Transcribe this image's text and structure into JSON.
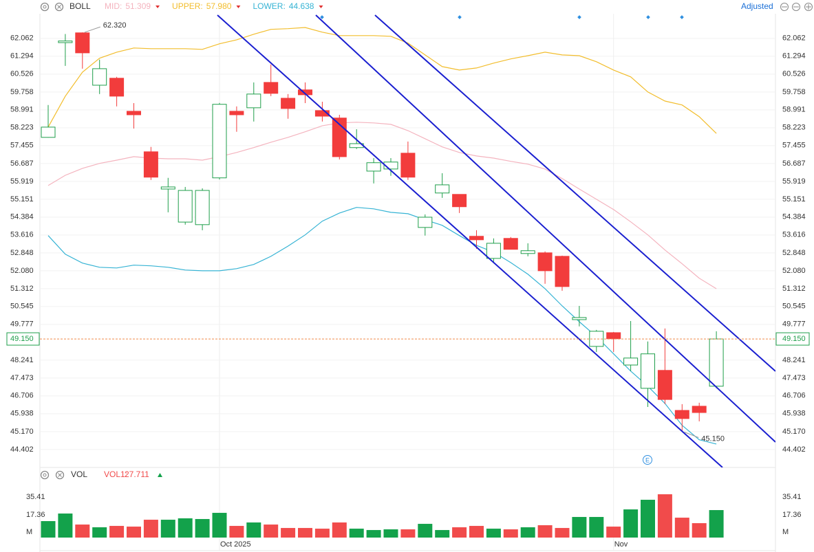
{
  "chart_data": [
    {
      "type": "candlestick",
      "title": "BOLL",
      "adjust_label": "Adjusted",
      "event_label": "E",
      "categories": [
        null,
        null,
        null,
        null,
        null,
        null,
        null,
        null,
        null,
        null,
        "Oct 2025",
        null,
        null,
        null,
        null,
        null,
        null,
        null,
        null,
        null,
        null,
        null,
        null,
        null,
        null,
        null,
        null,
        null,
        null,
        null,
        null,
        null,
        null,
        "Nov",
        null,
        null,
        null,
        null,
        null,
        null
      ],
      "open": [
        57.81,
        61.88,
        62.3,
        60.05,
        60.35,
        58.93,
        57.19,
        55.59,
        54.17,
        54.06,
        56.07,
        58.93,
        59.08,
        60.17,
        59.49,
        59.85,
        58.96,
        58.64,
        57.37,
        56.36,
        56.45,
        57.13,
        53.94,
        55.42,
        55.36,
        53.56,
        52.61,
        53.47,
        52.82,
        52.85,
        52.7,
        49.98,
        48.83,
        49.42,
        48.03,
        47.03,
        47.8,
        46.08,
        46.26,
        47.12
      ],
      "high": [
        59.2,
        62.25,
        62.32,
        61.15,
        60.41,
        59.28,
        57.4,
        56.07,
        55.68,
        55.62,
        59.29,
        59.14,
        60.17,
        60.94,
        59.67,
        60.17,
        59.34,
        58.78,
        58.16,
        56.92,
        56.92,
        57.63,
        54.5,
        56.27,
        55.36,
        53.82,
        53.47,
        53.53,
        53.26,
        52.91,
        52.73,
        50.57,
        49.54,
        49.45,
        49.92,
        49.04,
        49.6,
        46.35,
        46.41,
        49.48
      ],
      "low": [
        57.8,
        60.88,
        60.76,
        59.67,
        59.14,
        58.19,
        55.98,
        54.59,
        54.06,
        53.82,
        56.0,
        58.05,
        58.49,
        59.58,
        58.61,
        59.28,
        58.49,
        56.86,
        57.31,
        55.83,
        56.16,
        55.98,
        53.59,
        55.21,
        54.56,
        53.02,
        52.4,
        53.0,
        52.7,
        51.52,
        51.22,
        49.69,
        48.59,
        48.59,
        47.77,
        46.23,
        46.35,
        45.15,
        45.61,
        47.03
      ],
      "close": [
        58.25,
        61.95,
        61.44,
        60.76,
        59.58,
        58.78,
        56.1,
        55.68,
        55.53,
        55.53,
        59.23,
        58.78,
        59.67,
        59.7,
        59.05,
        59.64,
        58.72,
        56.98,
        57.54,
        56.72,
        56.75,
        56.1,
        54.38,
        55.77,
        54.83,
        53.41,
        53.26,
        53.0,
        52.94,
        52.08,
        51.4,
        50.07,
        49.48,
        49.16,
        48.33,
        48.51,
        46.55,
        45.73,
        45.99,
        49.15
      ],
      "up_color": "#1e9e4a",
      "down_color": "#f23c3c",
      "overlays": [
        {
          "name": "MID:",
          "last_label": "51.309",
          "color": "#f4b3be",
          "values": [
            55.74,
            56.18,
            56.48,
            56.69,
            56.83,
            56.98,
            56.92,
            56.89,
            56.89,
            56.83,
            56.98,
            57.16,
            57.37,
            57.6,
            57.81,
            58.05,
            58.31,
            58.43,
            58.46,
            58.43,
            58.37,
            58.1,
            57.75,
            57.4,
            57.16,
            57.01,
            56.92,
            56.78,
            56.66,
            56.45,
            56.04,
            55.59,
            55.15,
            54.71,
            54.18,
            53.62,
            52.97,
            52.38,
            51.76,
            51.309
          ]
        },
        {
          "name": "UPPER:",
          "last_label": "57.980",
          "color": "#f2bd2c",
          "values": [
            58.25,
            59.58,
            60.61,
            61.21,
            61.47,
            61.65,
            61.62,
            61.62,
            61.62,
            61.59,
            61.83,
            62.0,
            62.24,
            62.45,
            62.48,
            62.53,
            62.33,
            62.18,
            62.18,
            62.18,
            62.15,
            61.86,
            61.35,
            60.85,
            60.7,
            60.79,
            61.0,
            61.18,
            61.32,
            61.47,
            61.35,
            61.32,
            61.06,
            60.7,
            60.41,
            59.76,
            59.37,
            59.2,
            58.7,
            57.98
          ]
        },
        {
          "name": "LOWER:",
          "last_label": "44.638",
          "color": "#35b3d4",
          "values": [
            53.59,
            52.79,
            52.41,
            52.23,
            52.2,
            52.32,
            52.29,
            52.23,
            52.11,
            52.08,
            52.08,
            52.17,
            52.35,
            52.7,
            53.14,
            53.62,
            54.21,
            54.56,
            54.8,
            54.74,
            54.59,
            54.53,
            54.27,
            54.03,
            53.59,
            53.17,
            52.88,
            52.43,
            51.93,
            51.31,
            50.57,
            49.89,
            49.25,
            48.51,
            47.77,
            47.12,
            46.38,
            45.44,
            44.82,
            44.638
          ]
        }
      ],
      "high_label": {
        "value": 62.32,
        "label": "62.320"
      },
      "low_label": {
        "value": 45.15,
        "label": "45.150"
      },
      "current_price": {
        "value": 49.15,
        "label": "49.150"
      },
      "ylim": [
        43.63,
        63.12
      ],
      "yticks": [
        62.062,
        61.294,
        60.526,
        59.758,
        58.991,
        58.223,
        57.455,
        56.687,
        55.919,
        55.151,
        54.384,
        53.616,
        52.848,
        {
          "value": 52.08,
          "label": "52.080"
        },
        51.312,
        50.545,
        49.777,
        48.241,
        47.473,
        46.706,
        45.938,
        {
          "value": 45.17,
          "label": "45.170"
        },
        44.402
      ],
      "grid": true
    },
    {
      "type": "bar",
      "title": "VOL",
      "ma_name": "VOL1:",
      "ma_label": "27.711",
      "values": [
        11.11,
        18.75,
        7.64,
        4.87,
        6.26,
        5.56,
        12.5,
        12.5,
        13.89,
        13.2,
        19.44,
        6.26,
        9.73,
        7.64,
        4.17,
        4.17,
        3.48,
        9.73,
        3.48,
        2.09,
        2.79,
        2.79,
        8.34,
        2.09,
        4.87,
        6.26,
        3.48,
        2.79,
        4.87,
        6.95,
        4.17,
        15.28,
        15.28,
        5.56,
        22.91,
        32.63,
        38.18,
        14.58,
        9.03,
        22.22
      ],
      "up_color": "#13a24b",
      "down_color": "#f14b4b",
      "ylim": [
        -5.5,
        47.9
      ],
      "yticks": [
        35.41,
        17.36,
        {
          "value": 0,
          "label": "M"
        }
      ]
    }
  ]
}
